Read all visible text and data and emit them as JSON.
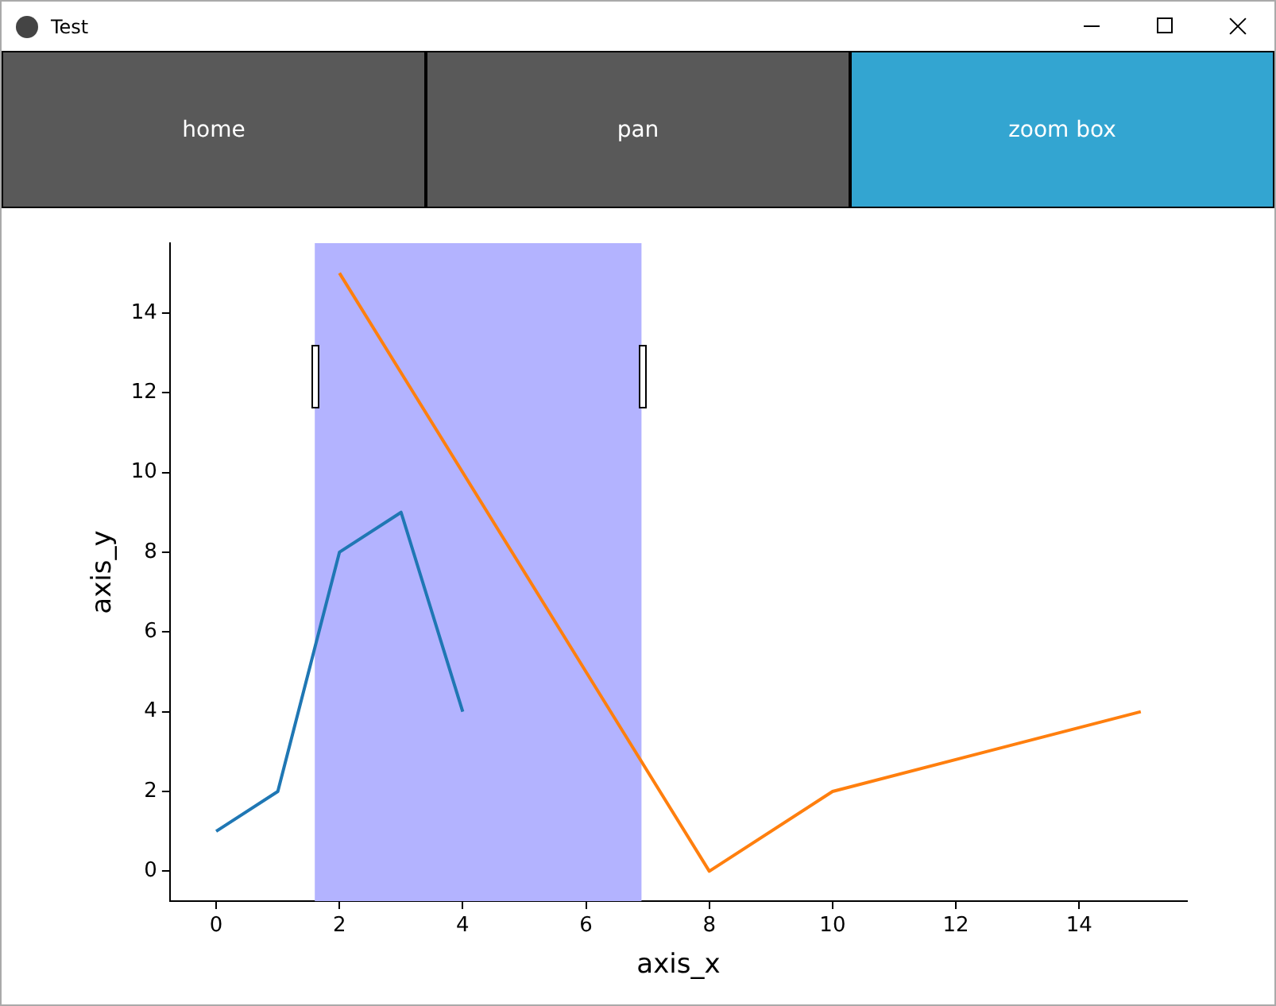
{
  "chart_data": {
    "type": "line",
    "title": "Test",
    "xlabel": "axis_x",
    "ylabel": "axis_y",
    "annotations": [
      "home",
      "pan",
      "zoom box"
    ],
    "series": [
      {
        "color": "#1f77b4",
        "x": [
          0,
          1,
          2,
          3,
          4
        ],
        "values": [
          1,
          2,
          8,
          9,
          4
        ]
      },
      {
        "color": "#ff7f0e",
        "x": [
          2,
          8,
          10,
          15
        ],
        "values": [
          15,
          0,
          2,
          4
        ]
      }
    ],
    "bands": [
      {
        "axis": "x",
        "from": 1.6,
        "to": 6.9,
        "color": "#b3b3ff"
      }
    ],
    "xlim": [
      -0.75,
      15.75
    ],
    "xticks": [
      0,
      2,
      4,
      6,
      8,
      10,
      12,
      14
    ],
    "ylim": [
      -0.75,
      15.75
    ],
    "yticks": [
      0,
      2,
      4,
      6,
      8,
      10,
      12,
      14
    ],
    "grid": false,
    "legend": false,
    "marker": "none",
    "line_style": "solid"
  }
}
